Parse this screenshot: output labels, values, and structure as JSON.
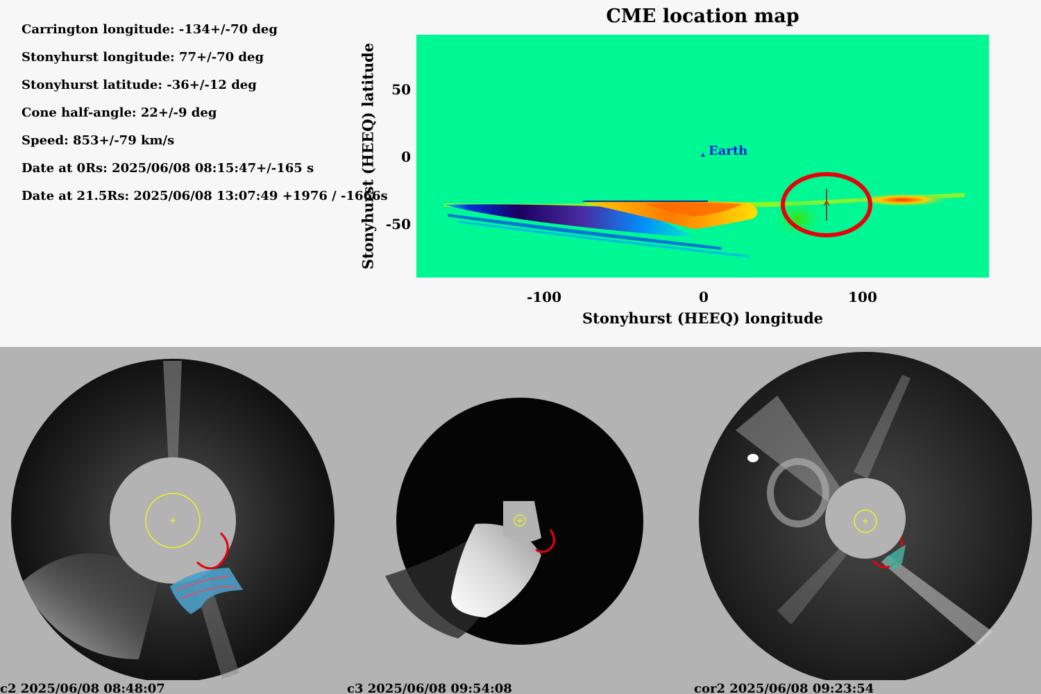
{
  "parameters": {
    "carrington_longitude": "Carrington longitude: -134+/-70 deg",
    "stonyhurst_longitude": "Stonyhurst longitude: 77+/-70 deg",
    "stonyhurst_latitude": "Stonyhurst latitude: -36+/-12 deg",
    "cone_half_angle": "Cone half-angle: 22+/-9 deg",
    "speed": "Speed: 853+/-79 km/s",
    "date_0rs": "Date at 0Rs: 2025/06/08 08:15:47+/-165 s",
    "date_21rs": "Date at 21.5Rs: 2025/06/08 13:07:49 +1976 / -1666s"
  },
  "chart_data": {
    "type": "heatmap",
    "title": "CME location map",
    "xlabel": "Stonyhurst (HEEQ) longitude",
    "ylabel": "Stonyhurst (HEEQ) latitude",
    "xlim": [
      -180,
      180
    ],
    "ylim": [
      -90,
      90
    ],
    "xticks": [
      "-100",
      "0",
      "100"
    ],
    "yticks": [
      "50",
      "0",
      "-50"
    ],
    "earth": {
      "label": "Earth",
      "lon": 0,
      "lat": 0
    },
    "cme_estimate": {
      "lon": 77,
      "lat": -36,
      "lon_err": 70,
      "lat_err": 12
    },
    "background_color": "#00f894",
    "ellipse_color": "#e8000b"
  },
  "frames": [
    {
      "label": "c2 2025/06/08 08:48:07",
      "instrument": "c2"
    },
    {
      "label": "c3 2025/06/08 09:54:08",
      "instrument": "c3"
    },
    {
      "label": "cor2 2025/06/08 09:23:54",
      "instrument": "cor2"
    }
  ]
}
